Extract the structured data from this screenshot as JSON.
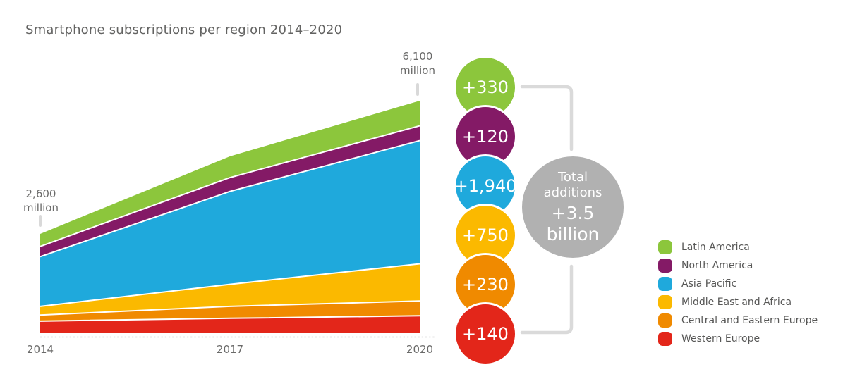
{
  "palette": {
    "title_gray": "#636362",
    "label_gray": "#6A6A69",
    "legend_text_gray": "#575756",
    "connector_gray": "#DADADA",
    "tick_gray": "#D9D9D9",
    "baseline_gray": "#C9C9C9",
    "total_circle_gray": "#B1B1B1",
    "green": "#8CC63C",
    "purple": "#841A66",
    "blue": "#1FA9DC",
    "yellow": "#FBB900",
    "orange": "#F08A00",
    "red": "#E3261A"
  },
  "chart_data": {
    "type": "area",
    "stacked": true,
    "title": "Smartphone subscriptions per region 2014–2020",
    "x": [
      2014,
      2017,
      2020
    ],
    "x_tick_labels": [
      "2014",
      "2017",
      "2020"
    ],
    "unit": "million",
    "ylim": [
      0,
      6110
    ],
    "grid": false,
    "legend_position": "right",
    "start_label": {
      "value": "2,600",
      "unit": "million"
    },
    "end_label": {
      "value": "6,100",
      "unit": "million"
    },
    "series": [
      {
        "name": "Western Europe",
        "color": "#E3261A",
        "values": [
          300,
          375,
          440
        ]
      },
      {
        "name": "Central and Eastern Europe",
        "color": "#F08A00",
        "values": [
          160,
          315,
          390
        ]
      },
      {
        "name": "Middle East and Africa",
        "color": "#FBB900",
        "values": [
          230,
          580,
          980
        ]
      },
      {
        "name": "Asia Pacific",
        "color": "#1FA9DC",
        "values": [
          1310,
          2450,
          3250
        ]
      },
      {
        "name": "North America",
        "color": "#841A66",
        "values": [
          270,
          365,
          390
        ]
      },
      {
        "name": "Latin America",
        "color": "#8CC63C",
        "values": [
          330,
          560,
          660
        ]
      }
    ]
  },
  "additions": {
    "bubbles": [
      {
        "region": "Latin America",
        "label": "+330",
        "color": "#8CC63C"
      },
      {
        "region": "North America",
        "label": "+120",
        "color": "#841A66"
      },
      {
        "region": "Asia Pacific",
        "label": "+1,940",
        "color": "#1FA9DC"
      },
      {
        "region": "Middle East and Africa",
        "label": "+750",
        "color": "#FBB900"
      },
      {
        "region": "Central and Eastern Europe",
        "label": "+230",
        "color": "#F08A00"
      },
      {
        "region": "Western Europe",
        "label": "+140",
        "color": "#E3261A"
      }
    ],
    "total": {
      "line1": "Total",
      "line2": "additions",
      "value": "+3.5",
      "unit": "billion",
      "color": "#B1B1B1"
    }
  },
  "legend": {
    "items": [
      {
        "label": "Latin America",
        "color": "#8CC63C"
      },
      {
        "label": "North America",
        "color": "#841A66"
      },
      {
        "label": "Asia Pacific",
        "color": "#1FA9DC"
      },
      {
        "label": "Middle East and Africa",
        "color": "#FBB900"
      },
      {
        "label": "Central and Eastern Europe",
        "color": "#F08A00"
      },
      {
        "label": "Western Europe",
        "color": "#E3261A"
      }
    ]
  }
}
